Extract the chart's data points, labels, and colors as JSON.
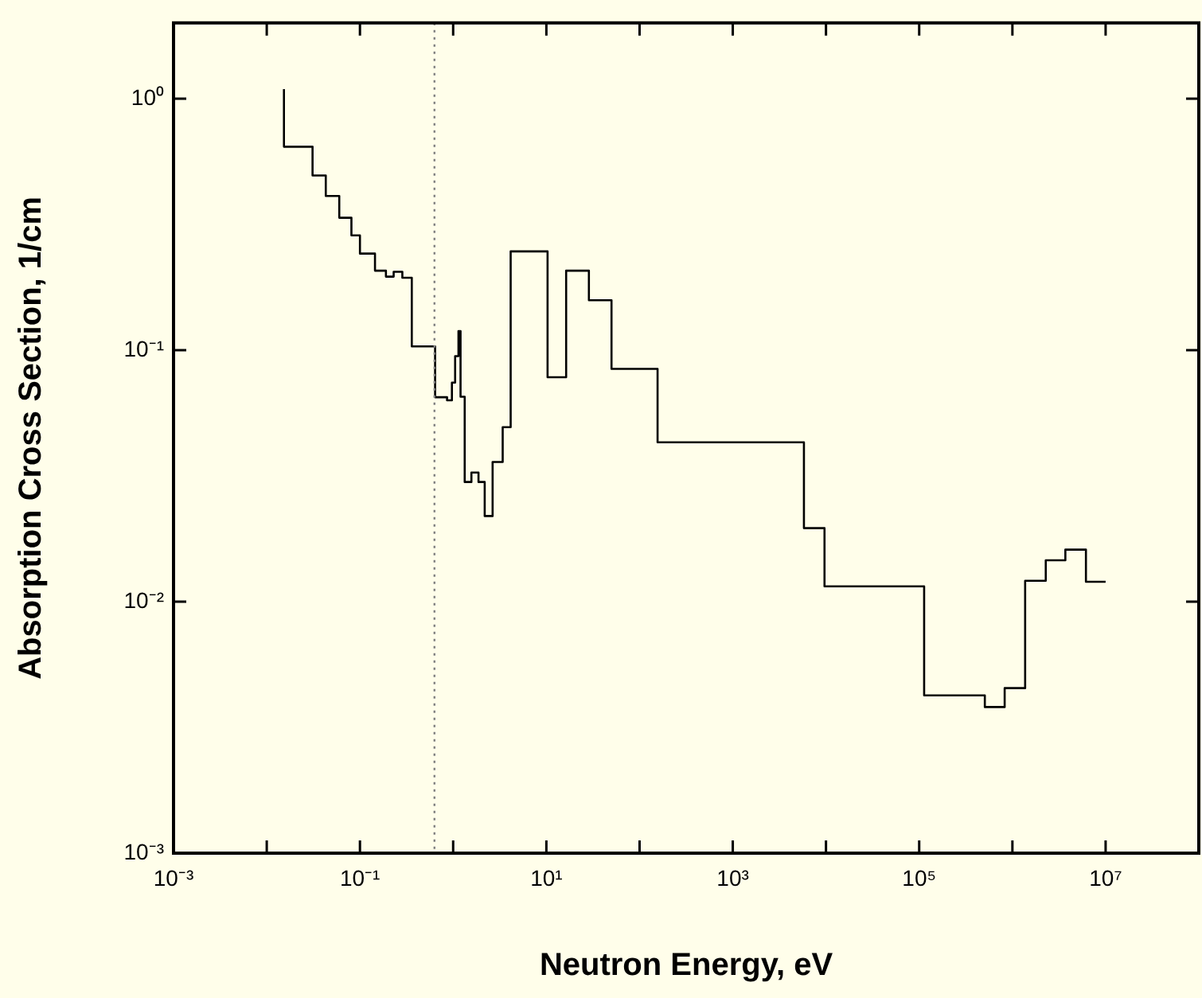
{
  "chart_data": {
    "type": "step",
    "xlabel": "Neutron Energy, eV",
    "ylabel": "Absorption Cross Section, 1/cm",
    "log": "xy",
    "grid": false,
    "legend": false,
    "marker": "none",
    "line_style": "solid",
    "xlim": [
      0.001,
      100000000
    ],
    "ylim": [
      0.001,
      2
    ],
    "xticks": [
      {
        "value": 0.001,
        "label": "10⁻³"
      },
      {
        "value": 0.01,
        "label": null
      },
      {
        "value": 0.1,
        "label": "10⁻¹"
      },
      {
        "value": 1,
        "label": null
      },
      {
        "value": 10,
        "label": "10¹"
      },
      {
        "value": 100,
        "label": null
      },
      {
        "value": 1000,
        "label": "10³"
      },
      {
        "value": 10000,
        "label": null
      },
      {
        "value": 100000,
        "label": "10⁵"
      },
      {
        "value": 1000000,
        "label": null
      },
      {
        "value": 10000000,
        "label": "10⁷"
      }
    ],
    "yticks": [
      {
        "value": 0.001,
        "label": "10⁻³"
      },
      {
        "value": 0.01,
        "label": "10⁻²"
      },
      {
        "value": 0.1,
        "label": "10⁻¹"
      },
      {
        "value": 1,
        "label": "10⁰"
      }
    ],
    "ref_lines": [
      {
        "axis": "x",
        "value": 0.63,
        "label": null,
        "color": "#808080",
        "line_style": "dotted"
      }
    ],
    "series": [
      {
        "color": "#000000",
        "x": [
          0.0153,
          0.0153,
          0.031,
          0.043,
          0.06,
          0.081,
          0.1,
          0.145,
          0.19,
          0.23,
          0.285,
          0.36,
          0.64,
          0.86,
          0.97,
          1.05,
          1.14,
          1.2,
          1.33,
          1.57,
          1.87,
          2.18,
          2.65,
          3.4,
          4.14,
          10.3,
          16.3,
          28.6,
          50,
          156,
          5800,
          9640,
          113000,
          506000,
          826000,
          1370000,
          2280000,
          3700000,
          6150000,
          10000000
        ],
        "values": [
          1.09,
          0.644,
          0.495,
          0.41,
          0.336,
          0.286,
          0.242,
          0.207,
          0.196,
          0.205,
          0.194,
          0.1035,
          0.065,
          0.0632,
          0.0743,
          0.0946,
          0.119,
          0.0653,
          0.0299,
          0.0326,
          0.0299,
          0.0219,
          0.0359,
          0.0494,
          0.247,
          0.078,
          0.207,
          0.158,
          0.0842,
          0.043,
          0.0196,
          0.0115,
          0.00424,
          0.00381,
          0.00453,
          0.0121,
          0.0146,
          0.0161,
          0.012,
          0.012
        ]
      }
    ]
  }
}
